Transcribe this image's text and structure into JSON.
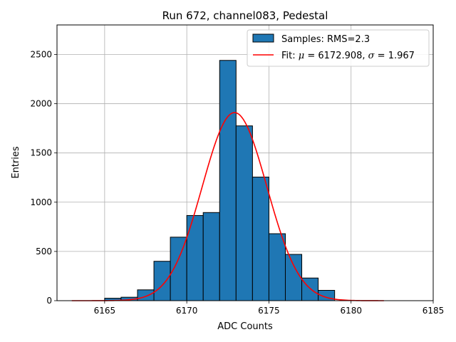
{
  "chart_data": {
    "type": "bar",
    "title": "Run 672, channel083, Pedestal",
    "xlabel": "ADC Counts",
    "ylabel": "Entries",
    "xlim": [
      6162.1,
      6185.0
    ],
    "ylim": [
      0,
      2800
    ],
    "xticks": [
      6165,
      6170,
      6175,
      6180,
      6185
    ],
    "yticks": [
      0,
      500,
      1000,
      1500,
      2000,
      2500
    ],
    "grid": true,
    "legend_position": "top-right",
    "legend": {
      "hist_label": "Samples: RMS=2.3",
      "fit_label_prefix": "Fit: ",
      "fit_mu_symbol": "μ",
      "fit_mu_value": " = 6172.908, ",
      "fit_sigma_symbol": "σ",
      "fit_sigma_value": " = 1.967"
    },
    "histogram": {
      "name": "Samples",
      "bin_edges": [
        6163,
        6164,
        6165,
        6166,
        6167,
        6168,
        6169,
        6170,
        6171,
        6172,
        6173,
        6174,
        6175,
        6176,
        6177,
        6178,
        6179,
        6180,
        6181,
        6182
      ],
      "counts": [
        0,
        0,
        25,
        35,
        110,
        400,
        645,
        865,
        895,
        2440,
        1775,
        1255,
        680,
        470,
        230,
        105,
        0,
        0,
        0
      ],
      "face_color": "#1f77b4",
      "edge_color": "#000000"
    },
    "fit": {
      "name": "Fit",
      "type": "gaussian",
      "mu": 6172.908,
      "sigma": 1.967,
      "amplitude": 1910,
      "x_range": [
        6163,
        6182
      ],
      "color": "#ff0000"
    }
  }
}
